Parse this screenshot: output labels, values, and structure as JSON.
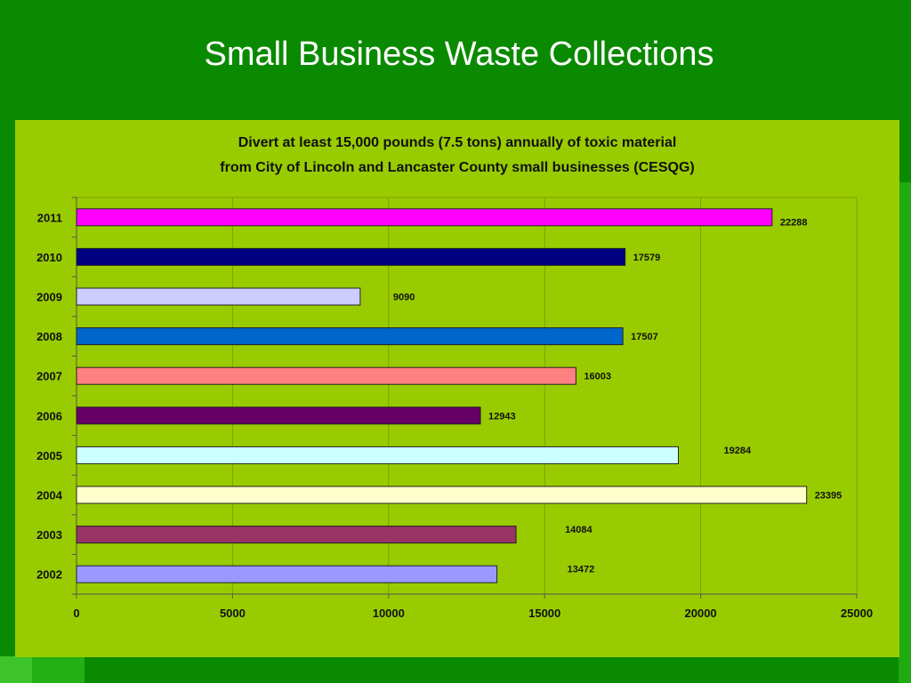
{
  "slide": {
    "title": "Small Business Waste Collections"
  },
  "chart_data": {
    "type": "bar",
    "orientation": "horizontal",
    "title_lines": [
      "Divert at least 15,000 pounds (7.5 tons) annually of toxic material",
      "from City of Lincoln and Lancaster County small businesses (CESQG)"
    ],
    "categories": [
      "2011",
      "2010",
      "2009",
      "2008",
      "2007",
      "2006",
      "2005",
      "2004",
      "2003",
      "2002"
    ],
    "values": [
      22288,
      17579,
      9090,
      17507,
      16003,
      12943,
      19284,
      23395,
      14084,
      13472
    ],
    "data_labels": [
      "22288",
      "17579",
      "9090",
      "17507",
      "16003",
      "12943",
      "19284",
      "23395",
      "14084",
      "13472"
    ],
    "colors": [
      "#ff00ff",
      "#000080",
      "#ccccff",
      "#0066cc",
      "#ff8080",
      "#660066",
      "#ccffff",
      "#ffffcc",
      "#993366",
      "#9999ff"
    ],
    "xlim": [
      0,
      25000
    ],
    "x_ticks": [
      "0",
      "5000",
      "10000",
      "15000",
      "20000",
      "25000"
    ],
    "grid": true,
    "xlabel": "",
    "ylabel": ""
  }
}
